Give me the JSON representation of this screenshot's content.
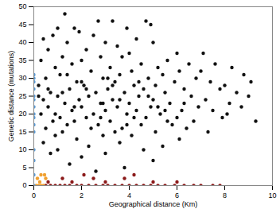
{
  "chart_data": {
    "type": "scatter",
    "x_label": "Geographical distance (Km)",
    "y_label": "Genetic distance (mutations)",
    "xlim": [
      0,
      10
    ],
    "xticks": [
      0,
      2,
      4,
      6,
      8,
      10
    ],
    "ylim": [
      0,
      50
    ],
    "yticks": [
      0,
      5,
      10,
      15,
      20,
      25,
      30,
      35,
      40,
      45,
      50
    ],
    "grid": false,
    "marker": "circle",
    "series": [
      {
        "color": "#111111",
        "x": [
          1.3,
          2.7,
          3.3,
          4.7,
          4.9,
          1.0,
          1.7,
          1.9,
          3.9,
          2.5,
          0.8,
          0.4,
          4.3,
          1.4,
          3.0,
          5.0,
          3.5,
          2.2,
          0.6,
          6.0,
          4.0,
          7.1,
          2.8,
          1.2,
          3.7,
          5.6,
          0.3,
          2.0,
          4.5,
          6.5,
          7.6,
          1.6,
          3.2,
          5.2,
          0.9,
          8.3,
          2.4,
          4.1,
          6.1,
          7.0,
          1.1,
          3.6,
          5.4,
          8.8,
          0.5,
          2.9,
          4.8,
          6.8,
          9.1,
          1.8,
          3.4,
          5.9,
          7.4,
          0.2,
          2.1,
          4.2,
          5.1,
          8.0,
          1.5,
          3.1,
          4.6,
          6.3,
          7.8,
          0.7,
          2.6,
          3.8,
          5.5,
          8.5,
          1.0,
          2.3,
          4.4,
          6.6,
          9.0,
          0.4,
          1.9,
          3.3,
          5.0,
          7.2,
          1.3,
          2.8,
          4.0,
          5.7,
          8.2,
          0.6,
          2.0,
          3.5,
          4.9,
          6.9,
          8.7,
          1.6,
          3.0,
          4.3,
          6.2,
          7.5,
          0.3,
          2.5,
          3.9,
          5.3,
          8.1,
          1.1,
          2.2,
          4.7,
          6.0,
          7.9,
          0.8,
          1.7,
          3.2,
          5.6,
          6.7,
          9.3,
          1.4,
          2.7,
          4.5,
          5.8,
          0.5,
          2.4,
          3.7,
          6.4,
          1.2,
          3.4,
          5.1,
          7.3,
          0.9,
          2.9,
          4.1,
          6.1,
          1.8,
          3.6,
          0.4,
          5.4,
          2.3,
          1.0,
          4.6,
          3.0,
          2.0,
          5.0,
          1.5,
          3.8,
          0.7,
          2.6,
          1.2,
          2.2,
          3.3,
          4.4,
          5.5,
          0.9,
          2.8,
          3.6,
          4.8,
          1.7,
          2.9,
          0.2,
          5.2,
          3.1,
          1.4,
          4.2,
          6.3,
          2.0,
          0.6,
          3.9
        ],
        "y": [
          48,
          46,
          46,
          46,
          45,
          44,
          44,
          43,
          44,
          42,
          42,
          41,
          41,
          40,
          40,
          40,
          39,
          38,
          38,
          37,
          37,
          37,
          36,
          36,
          36,
          35,
          35,
          35,
          34,
          34,
          34,
          34,
          33,
          33,
          33,
          33,
          32,
          32,
          32,
          32,
          31,
          31,
          31,
          31,
          30,
          30,
          30,
          30,
          29,
          29,
          29,
          29,
          29,
          28,
          28,
          28,
          28,
          28,
          27,
          27,
          27,
          27,
          27,
          26,
          26,
          26,
          26,
          26,
          25,
          25,
          25,
          25,
          25,
          24,
          24,
          24,
          24,
          24,
          23,
          23,
          23,
          23,
          23,
          22,
          22,
          22,
          22,
          22,
          22,
          21,
          21,
          21,
          21,
          21,
          20,
          20,
          20,
          20,
          20,
          19,
          19,
          19,
          19,
          19,
          18,
          18,
          18,
          18,
          18,
          18,
          17,
          17,
          17,
          17,
          16,
          16,
          16,
          16,
          15,
          15,
          15,
          15,
          14,
          14,
          14,
          13,
          13,
          12,
          12,
          11,
          11,
          10,
          10,
          9,
          8,
          7,
          6,
          5,
          9,
          4,
          26,
          27,
          28,
          29,
          21,
          20,
          19,
          24,
          25,
          22,
          23,
          25,
          22,
          30,
          31,
          19,
          23,
          29,
          27,
          17
        ]
      },
      {
        "color": "#8b1a1a",
        "x": [
          0.5,
          0.7,
          0.9,
          1.1,
          1.3,
          1.5,
          1.8,
          2.0,
          2.3,
          2.6,
          2.9,
          3.1,
          3.4,
          3.7,
          4.0,
          4.3,
          4.6,
          4.9,
          5.2,
          5.5,
          5.9,
          6.3,
          6.7,
          7.0,
          7.5,
          7.8,
          0.6,
          1.6,
          2.5,
          3.0,
          3.8,
          4.2,
          5.0,
          2.1,
          1.2,
          6.0
        ],
        "y": [
          0,
          0,
          0,
          0,
          0,
          0,
          0,
          0,
          0,
          0,
          0,
          0,
          0,
          0,
          0,
          0,
          0,
          0,
          0,
          0,
          0,
          0,
          0,
          0,
          0,
          0,
          1,
          1,
          2,
          1,
          2,
          3,
          1,
          3,
          2,
          1
        ]
      },
      {
        "color": "#f0a030",
        "x": [
          0.1,
          0.2,
          0.3,
          0.4,
          0.15,
          0.3,
          0.45,
          0.25,
          0.5
        ],
        "y": [
          0,
          0,
          0,
          0,
          2,
          3,
          3,
          1,
          2
        ]
      },
      {
        "color": "#5b9bd5",
        "x": [
          0,
          0,
          0,
          0,
          0,
          0,
          0,
          0,
          0,
          0,
          0,
          0,
          0,
          0,
          0
        ],
        "y": [
          0,
          3,
          7,
          10,
          15,
          17,
          19,
          20,
          22,
          24,
          25,
          27,
          29,
          30,
          31
        ]
      }
    ]
  }
}
